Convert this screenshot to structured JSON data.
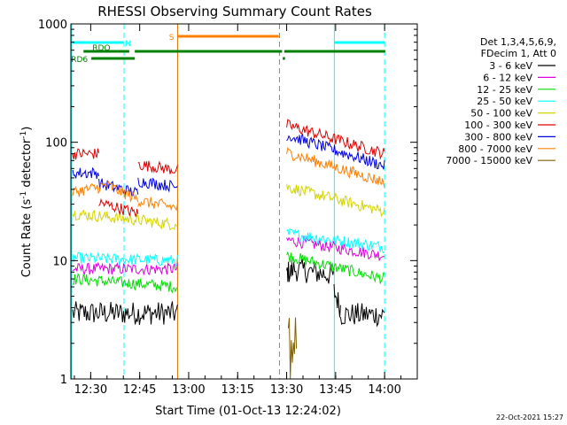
{
  "chart_data": {
    "type": "line",
    "title": "RHESSI Observing Summary Count Rates",
    "xlabel": "Start Time (01-Oct-13 12:24:02)",
    "ylabel_main": "Count Rate (s",
    "ylabel_sup1": "-1",
    "ylabel_mid": " detector",
    "ylabel_sup2": "-1",
    "ylabel_end": ")",
    "y_scale": "log",
    "ylim": [
      1,
      1000
    ],
    "xlim_minutes": [
      -0.07,
      106.0
    ],
    "x_ticks": [
      {
        "t": 6.0,
        "label": "12:30"
      },
      {
        "t": 21.0,
        "label": "12:45"
      },
      {
        "t": 36.0,
        "label": "13:00"
      },
      {
        "t": 51.0,
        "label": "13:15"
      },
      {
        "t": 66.0,
        "label": "13:30"
      },
      {
        "t": 81.0,
        "label": "13:45"
      },
      {
        "t": 96.0,
        "label": "14:00"
      }
    ],
    "y_ticks": [
      {
        "v": 1,
        "label": "1"
      },
      {
        "v": 10,
        "label": "10"
      },
      {
        "v": 100,
        "label": "100"
      },
      {
        "v": 1000,
        "label": "1000"
      }
    ],
    "legend": {
      "placement": "right",
      "header": [
        "Det 1,3,4,5,6,9,",
        "FDecim 1, Att 0"
      ],
      "entries": [
        {
          "name": "3 - 6 keV",
          "color": "#000000"
        },
        {
          "name": "6 - 12 keV",
          "color": "#e000e0"
        },
        {
          "name": "12 - 25 keV",
          "color": "#00e000"
        },
        {
          "name": "25 - 50 keV",
          "color": "#00ffff"
        },
        {
          "name": "50 - 100 keV",
          "color": "#d4d400"
        },
        {
          "name": "100 - 300 keV",
          "color": "#e00000"
        },
        {
          "name": "300 - 800 keV",
          "color": "#0000e0"
        },
        {
          "name": "800 - 7000 keV",
          "color": "#ff8000"
        },
        {
          "name": "7000 - 15000 keV",
          "color": "#806000"
        }
      ]
    },
    "series": [
      {
        "name": "3 - 6 keV",
        "color": "#000000",
        "segments": [
          {
            "t0": 0.5,
            "t1": 32.6,
            "y0": 3.6,
            "y1": 3.6
          },
          {
            "t0": 66.0,
            "t1": 67.5,
            "y0": 8,
            "y1": 8
          },
          {
            "t0": 67.5,
            "t1": 80.5,
            "y0": 8.5,
            "y1": 7.5
          },
          {
            "t0": 80.5,
            "t1": 82.5,
            "y0": 5.5,
            "y1": 4
          },
          {
            "t0": 82.5,
            "t1": 96.0,
            "y0": 3.5,
            "y1": 3.5
          }
        ]
      },
      {
        "name": "6 - 12 keV",
        "color": "#e000e0",
        "segments": [
          {
            "t0": 0.5,
            "t1": 32.6,
            "y0": 8.5,
            "y1": 8.5
          },
          {
            "t0": 66.0,
            "t1": 96.0,
            "y0": 15,
            "y1": 11
          }
        ]
      },
      {
        "name": "12 - 25 keV",
        "color": "#00e000",
        "segments": [
          {
            "t0": 0.5,
            "t1": 32.6,
            "y0": 7,
            "y1": 6
          },
          {
            "t0": 66.0,
            "t1": 96.0,
            "y0": 11,
            "y1": 7
          }
        ]
      },
      {
        "name": "25 - 50 keV",
        "color": "#00ffff",
        "segments": [
          {
            "t0": 0.5,
            "t1": 32.6,
            "y0": 10.5,
            "y1": 10
          },
          {
            "t0": 66.0,
            "t1": 96.0,
            "y0": 17,
            "y1": 13
          }
        ]
      },
      {
        "name": "50 - 100 keV",
        "color": "#d4d400",
        "segments": [
          {
            "t0": 0.5,
            "t1": 20.5,
            "y0": 25,
            "y1": 22
          },
          {
            "t0": 20.5,
            "t1": 32.6,
            "y0": 22,
            "y1": 20
          },
          {
            "t0": 66.0,
            "t1": 96.0,
            "y0": 42,
            "y1": 26
          }
        ]
      },
      {
        "name": "100 - 300 keV",
        "color": "#e00000",
        "segments": [
          {
            "t0": 0.5,
            "t1": 8.5,
            "y0": 80,
            "y1": 80
          },
          {
            "t0": 8.5,
            "t1": 20.5,
            "y0": 31,
            "y1": 25
          },
          {
            "t0": 20.5,
            "t1": 32.6,
            "y0": 65,
            "y1": 58
          },
          {
            "t0": 66.0,
            "t1": 96.0,
            "y0": 140,
            "y1": 80
          }
        ]
      },
      {
        "name": "300 - 800 keV",
        "color": "#0000e0",
        "segments": [
          {
            "t0": 0.5,
            "t1": 8.5,
            "y0": 55,
            "y1": 55
          },
          {
            "t0": 8.5,
            "t1": 20.5,
            "y0": 45,
            "y1": 37
          },
          {
            "t0": 20.5,
            "t1": 32.6,
            "y0": 47,
            "y1": 42
          },
          {
            "t0": 66.0,
            "t1": 96.0,
            "y0": 115,
            "y1": 63
          }
        ]
      },
      {
        "name": "800 - 7000 keV",
        "color": "#ff8000",
        "segments": [
          {
            "t0": 0.5,
            "t1": 11.0,
            "y0": 38,
            "y1": 43
          },
          {
            "t0": 11.0,
            "t1": 20.5,
            "y0": 43,
            "y1": 33
          },
          {
            "t0": 20.5,
            "t1": 32.6,
            "y0": 32,
            "y1": 28
          },
          {
            "t0": 66.0,
            "t1": 96.0,
            "y0": 82,
            "y1": 46
          }
        ]
      },
      {
        "name": "7000 - 15000 keV",
        "color": "#806000",
        "segments": [
          {
            "t0": 66.5,
            "t1": 69.0,
            "y0": 1.9,
            "y1": 1.9
          }
        ]
      }
    ],
    "annotations": {
      "vlines": [
        {
          "t": 0.2,
          "color": "#00ffff",
          "dash": false
        },
        {
          "t": 16.2,
          "color": "#00ffff",
          "dash": true
        },
        {
          "t": 32.6,
          "color": "#e07000",
          "dash": false
        },
        {
          "t": 63.8,
          "color": "#e07000",
          "dash": true
        },
        {
          "t": 80.6,
          "color": "#00ffff",
          "dash": false
        },
        {
          "t": 96.0,
          "color": "#00ffff",
          "dash": true
        }
      ],
      "bars": [
        {
          "label": "N",
          "color": "#00ffff",
          "t0": 0.5,
          "t1": 16.0,
          "level": 1
        },
        {
          "label": "",
          "color": "#00ffff",
          "t0": 80.7,
          "t1": 96.0,
          "level": 1
        },
        {
          "label": "S",
          "color": "#ff8000",
          "t0": 32.6,
          "t1": 63.6,
          "level": 0
        },
        {
          "label": "RDO",
          "color": "#008000",
          "t0": 3.8,
          "t1": 17.8,
          "level": 2
        },
        {
          "label": "",
          "color": "#008000",
          "t0": 19.5,
          "t1": 64.6,
          "level": 2
        },
        {
          "label": "",
          "color": "#008000",
          "t0": 65.3,
          "t1": 96.2,
          "level": 2
        },
        {
          "label": "RD6",
          "color": "#008000",
          "t0": 6.2,
          "t1": 19.5,
          "level": 3
        },
        {
          "label": "",
          "color": "#008000",
          "t0": 64.8,
          "t1": 65.5,
          "level": 3
        }
      ]
    },
    "footer_timestamp": "22-Oct-2021 15:27"
  }
}
